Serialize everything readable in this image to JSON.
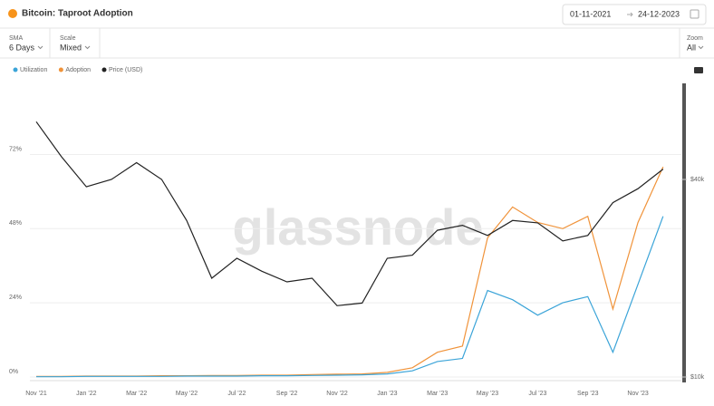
{
  "ui": {
    "title": "Bitcoin: Taproot Adoption",
    "date_from": "01-11-2021",
    "date_to": "24-12-2023",
    "controls": [
      {
        "label": "SMA",
        "value": "6 Days"
      },
      {
        "label": "Scale",
        "value": "Mixed"
      }
    ],
    "zoom": {
      "label": "Zoom",
      "value": "All"
    },
    "watermark": "glassnode"
  },
  "chart_data": {
    "type": "line",
    "categories": [
      "Nov '21",
      null,
      "Jan '22",
      null,
      "Mar '22",
      null,
      "May '22",
      null,
      "Jul '22",
      null,
      "Sep '22",
      null,
      "Nov '22",
      null,
      "Jan '23",
      null,
      "Mar '23",
      null,
      "May '23",
      null,
      "Jul '23",
      null,
      "Sep '23",
      null,
      "Nov '23",
      null
    ],
    "series": [
      {
        "name": "Utilization",
        "color": "#3ba4d8",
        "values": [
          0.1,
          0.1,
          0.2,
          0.2,
          0.2,
          0.2,
          0.3,
          0.3,
          0.3,
          0.4,
          0.4,
          0.5,
          0.6,
          0.7,
          1,
          2,
          5,
          6,
          28,
          25,
          20,
          24,
          26,
          8,
          30,
          52
        ]
      },
      {
        "name": "Adoption",
        "color": "#f0933a",
        "values": [
          0.2,
          0.2,
          0.3,
          0.3,
          0.3,
          0.4,
          0.4,
          0.5,
          0.5,
          0.6,
          0.6,
          0.8,
          0.9,
          1,
          1.5,
          3,
          8,
          10,
          45,
          55,
          50,
          48,
          52,
          22,
          50,
          68
        ]
      },
      {
        "name": "Price (USD)",
        "color": "#222222",
        "axis": "y2",
        "values": [
          60000,
          47000,
          38000,
          40000,
          45000,
          40000,
          30000,
          20000,
          23000,
          21000,
          19500,
          20000,
          16500,
          16800,
          23000,
          23500,
          28000,
          29000,
          27000,
          30000,
          29500,
          26000,
          27000,
          34000,
          37500,
          43000
        ]
      }
    ],
    "ylim": [
      0,
      95
    ],
    "yticks": [
      {
        "value": 0,
        "label": "0%"
      },
      {
        "value": 24,
        "label": "24%"
      },
      {
        "value": 48,
        "label": "48%"
      },
      {
        "value": 72,
        "label": "72%"
      }
    ],
    "y2lim": [
      10000,
      78500
    ],
    "y2scale": "log",
    "y2ticks": [
      {
        "value": 10000,
        "label": "$10k"
      },
      {
        "value": 40000,
        "label": "$40k"
      }
    ],
    "grid": true,
    "legend": "top-left"
  }
}
